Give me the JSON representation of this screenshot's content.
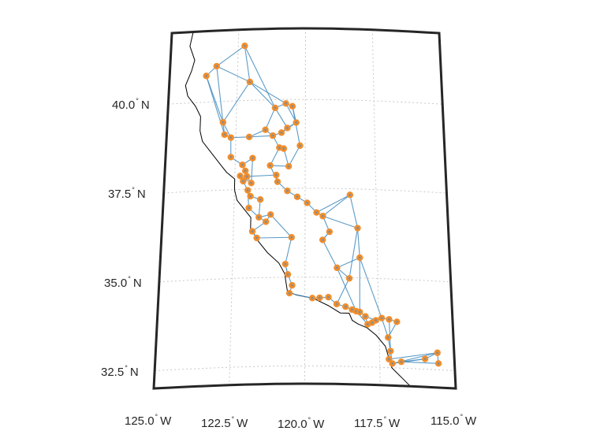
{
  "lat_labels": [
    {
      "value": "40.0",
      "deg": "°",
      "hemi": "N"
    },
    {
      "value": "37.5",
      "deg": "°",
      "hemi": "N"
    },
    {
      "value": "35.0",
      "deg": "°",
      "hemi": "N"
    },
    {
      "value": "32.5",
      "deg": "°",
      "hemi": "N"
    }
  ],
  "lon_labels": [
    {
      "value": "125.0",
      "deg": "°",
      "hemi": "W"
    },
    {
      "value": "122.5",
      "deg": "°",
      "hemi": "W"
    },
    {
      "value": "120.0",
      "deg": "°",
      "hemi": "W"
    },
    {
      "value": "117.5",
      "deg": "°",
      "hemi": "W"
    },
    {
      "value": "115.0",
      "deg": "°",
      "hemi": "W"
    }
  ],
  "colors": {
    "frame": "#262626",
    "coastline": "#000000",
    "grid": "#c8c8c8",
    "edges": "#4a90c2",
    "nodes": "#f28e2b",
    "node_inner": "#8c8c8c"
  },
  "map": {
    "lon_range": [
      -125,
      -115
    ],
    "lat_range": [
      32,
      42
    ],
    "projection": "conic",
    "grid": true,
    "nodes": [
      [
        -122.26,
        41.54
      ],
      [
        -123.28,
        41.0
      ],
      [
        -123.65,
        40.74
      ],
      [
        -122.04,
        40.52
      ],
      [
        -122.98,
        39.41
      ],
      [
        -122.91,
        39.06
      ],
      [
        -122.68,
        38.97
      ],
      [
        -122.02,
        38.97
      ],
      [
        -121.44,
        39.16
      ],
      [
        -121.1,
        39.77
      ],
      [
        -120.71,
        39.89
      ],
      [
        -120.47,
        39.81
      ],
      [
        -120.33,
        39.35
      ],
      [
        -120.65,
        39.2
      ],
      [
        -120.86,
        39.07
      ],
      [
        -121.17,
        38.99
      ],
      [
        -120.93,
        38.65
      ],
      [
        -120.77,
        38.62
      ],
      [
        -120.59,
        38.12
      ],
      [
        -122.66,
        38.42
      ],
      [
        -122.24,
        38.19
      ],
      [
        -122.13,
        38.02
      ],
      [
        -122.07,
        37.86
      ],
      [
        -121.91,
        37.67
      ],
      [
        -122.31,
        37.88
      ],
      [
        -122.2,
        37.73
      ],
      [
        -122.03,
        37.47
      ],
      [
        -121.93,
        37.3
      ],
      [
        -121.58,
        37.2
      ],
      [
        -121.62,
        36.7
      ],
      [
        -121.98,
        36.97
      ],
      [
        -121.21,
        36.77
      ],
      [
        -121.84,
        36.31
      ],
      [
        -121.37,
        36.57
      ],
      [
        -121.68,
        36.12
      ],
      [
        -120.47,
        36.12
      ],
      [
        -121.03,
        37.88
      ],
      [
        -120.98,
        37.69
      ],
      [
        -120.63,
        37.43
      ],
      [
        -120.28,
        37.26
      ],
      [
        -119.93,
        37.09
      ],
      [
        -119.6,
        36.82
      ],
      [
        -119.38,
        36.72
      ],
      [
        -119.15,
        36.28
      ],
      [
        -119.39,
        36.05
      ],
      [
        -118.42,
        37.33
      ],
      [
        -118.17,
        36.4
      ],
      [
        -118.11,
        35.57
      ],
      [
        -118.9,
        35.27
      ],
      [
        -118.48,
        34.98
      ],
      [
        -120.68,
        35.37
      ],
      [
        -120.59,
        35.08
      ],
      [
        -120.44,
        34.77
      ],
      [
        -120.53,
        34.55
      ],
      [
        -119.75,
        34.41
      ],
      [
        -119.5,
        34.42
      ],
      [
        -119.2,
        34.44
      ],
      [
        -118.92,
        34.25
      ],
      [
        -118.62,
        34.18
      ],
      [
        -118.4,
        34.1
      ],
      [
        -118.26,
        34.06
      ],
      [
        -118.14,
        34.04
      ],
      [
        -117.95,
        33.92
      ],
      [
        -117.88,
        33.7
      ],
      [
        -117.73,
        33.75
      ],
      [
        -117.6,
        33.82
      ],
      [
        -117.4,
        33.89
      ],
      [
        -117.15,
        33.86
      ],
      [
        -116.89,
        33.8
      ],
      [
        -117.13,
        32.97
      ],
      [
        -117.19,
        32.74
      ],
      [
        -117.08,
        32.62
      ],
      [
        -116.78,
        32.68
      ],
      [
        -115.98,
        32.79
      ],
      [
        -115.56,
        32.98
      ],
      [
        -115.54,
        32.68
      ],
      [
        -117.2,
        33.35
      ],
      [
        -121.88,
        38.37
      ],
      [
        -120.19,
        38.7
      ],
      [
        -121.25,
        38.15
      ]
    ],
    "edges": [
      [
        0,
        1
      ],
      [
        0,
        3
      ],
      [
        1,
        2
      ],
      [
        1,
        3
      ],
      [
        2,
        4
      ],
      [
        3,
        4
      ],
      [
        3,
        9
      ],
      [
        1,
        4
      ],
      [
        4,
        5
      ],
      [
        4,
        6
      ],
      [
        5,
        6
      ],
      [
        6,
        7
      ],
      [
        7,
        8
      ],
      [
        8,
        9
      ],
      [
        9,
        10
      ],
      [
        10,
        11
      ],
      [
        11,
        12
      ],
      [
        12,
        13
      ],
      [
        13,
        14
      ],
      [
        14,
        15
      ],
      [
        15,
        16
      ],
      [
        16,
        17
      ],
      [
        17,
        18
      ],
      [
        7,
        15
      ],
      [
        9,
        13
      ],
      [
        10,
        12
      ],
      [
        6,
        19
      ],
      [
        19,
        20
      ],
      [
        20,
        21
      ],
      [
        21,
        22
      ],
      [
        22,
        23
      ],
      [
        23,
        24
      ],
      [
        24,
        25
      ],
      [
        25,
        26
      ],
      [
        26,
        27
      ],
      [
        27,
        28
      ],
      [
        28,
        29
      ],
      [
        29,
        30
      ],
      [
        30,
        26
      ],
      [
        29,
        31
      ],
      [
        31,
        33
      ],
      [
        33,
        32
      ],
      [
        32,
        34
      ],
      [
        34,
        35
      ],
      [
        31,
        35
      ],
      [
        29,
        33
      ],
      [
        22,
        36
      ],
      [
        36,
        37
      ],
      [
        37,
        38
      ],
      [
        38,
        39
      ],
      [
        39,
        40
      ],
      [
        40,
        41
      ],
      [
        41,
        42
      ],
      [
        42,
        43
      ],
      [
        43,
        44
      ],
      [
        41,
        45
      ],
      [
        45,
        46
      ],
      [
        46,
        47
      ],
      [
        47,
        48
      ],
      [
        48,
        49
      ],
      [
        42,
        46
      ],
      [
        44,
        48
      ],
      [
        35,
        50
      ],
      [
        50,
        51
      ],
      [
        51,
        52
      ],
      [
        52,
        53
      ],
      [
        53,
        54
      ],
      [
        54,
        55
      ],
      [
        55,
        56
      ],
      [
        56,
        57
      ],
      [
        57,
        58
      ],
      [
        58,
        59
      ],
      [
        59,
        60
      ],
      [
        60,
        61
      ],
      [
        61,
        62
      ],
      [
        62,
        63
      ],
      [
        63,
        64
      ],
      [
        64,
        65
      ],
      [
        65,
        66
      ],
      [
        66,
        67
      ],
      [
        67,
        68
      ],
      [
        68,
        76
      ],
      [
        76,
        69
      ],
      [
        69,
        70
      ],
      [
        70,
        71
      ],
      [
        71,
        72
      ],
      [
        72,
        73
      ],
      [
        73,
        74
      ],
      [
        74,
        75
      ],
      [
        75,
        72
      ],
      [
        71,
        73
      ],
      [
        49,
        57
      ],
      [
        48,
        60
      ],
      [
        47,
        61
      ],
      [
        47,
        66
      ],
      [
        3,
        10
      ],
      [
        11,
        78
      ],
      [
        78,
        18
      ],
      [
        18,
        79
      ],
      [
        79,
        37
      ],
      [
        77,
        20
      ],
      [
        77,
        23
      ],
      [
        16,
        79
      ],
      [
        2,
        5
      ],
      [
        0,
        9
      ],
      [
        8,
        15
      ],
      [
        12,
        14
      ],
      [
        44,
        43
      ],
      [
        46,
        49
      ],
      [
        45,
        42
      ],
      [
        51,
        50
      ],
      [
        69,
        71
      ],
      [
        71,
        74
      ],
      [
        70,
        74
      ],
      [
        60,
        63
      ],
      [
        62,
        65
      ],
      [
        66,
        76
      ],
      [
        67,
        69
      ]
    ],
    "coastline": [
      [
        -124.2,
        42.0
      ],
      [
        -124.3,
        41.6
      ],
      [
        -124.1,
        41.2
      ],
      [
        -124.2,
        40.9
      ],
      [
        -124.4,
        40.5
      ],
      [
        -124.3,
        40.2
      ],
      [
        -124.0,
        39.9
      ],
      [
        -123.8,
        39.6
      ],
      [
        -123.8,
        39.2
      ],
      [
        -123.7,
        38.9
      ],
      [
        -123.3,
        38.5
      ],
      [
        -123.0,
        38.2
      ],
      [
        -122.8,
        38.0
      ],
      [
        -122.5,
        37.8
      ],
      [
        -122.5,
        37.5
      ],
      [
        -122.4,
        37.2
      ],
      [
        -122.1,
        36.9
      ],
      [
        -121.9,
        36.7
      ],
      [
        -121.9,
        36.4
      ],
      [
        -121.6,
        36.0
      ],
      [
        -121.3,
        35.7
      ],
      [
        -120.9,
        35.4
      ],
      [
        -120.7,
        35.1
      ],
      [
        -120.6,
        34.6
      ],
      [
        -120.3,
        34.5
      ],
      [
        -119.7,
        34.4
      ],
      [
        -119.2,
        34.2
      ],
      [
        -118.8,
        34.0
      ],
      [
        -118.5,
        34.0
      ],
      [
        -118.4,
        33.8
      ],
      [
        -118.2,
        33.7
      ],
      [
        -117.9,
        33.6
      ],
      [
        -117.6,
        33.4
      ],
      [
        -117.3,
        33.1
      ],
      [
        -117.2,
        32.8
      ],
      [
        -117.1,
        32.5
      ],
      [
        -116.5,
        32.0
      ]
    ]
  }
}
